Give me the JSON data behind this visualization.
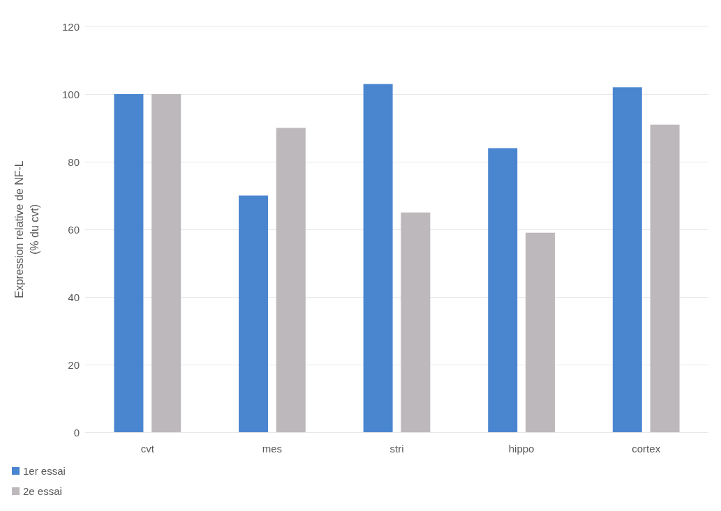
{
  "chart_data": {
    "type": "bar",
    "ylabel": "Expression relative de NF-L\n(% du cvt)",
    "categories": [
      "cvt",
      "mes",
      "stri",
      "hippo",
      "cortex"
    ],
    "series": [
      {
        "name": "1er essai",
        "color": "#4a86cf",
        "values": [
          100,
          70,
          103,
          84,
          102
        ]
      },
      {
        "name": "2e essai",
        "color": "#bdb8bb",
        "values": [
          100,
          90,
          65,
          59,
          91
        ]
      }
    ],
    "ylim": [
      0,
      120
    ],
    "yticks": [
      0,
      20,
      40,
      60,
      80,
      100,
      120
    ],
    "grid": "y",
    "legend": "bottom left"
  }
}
